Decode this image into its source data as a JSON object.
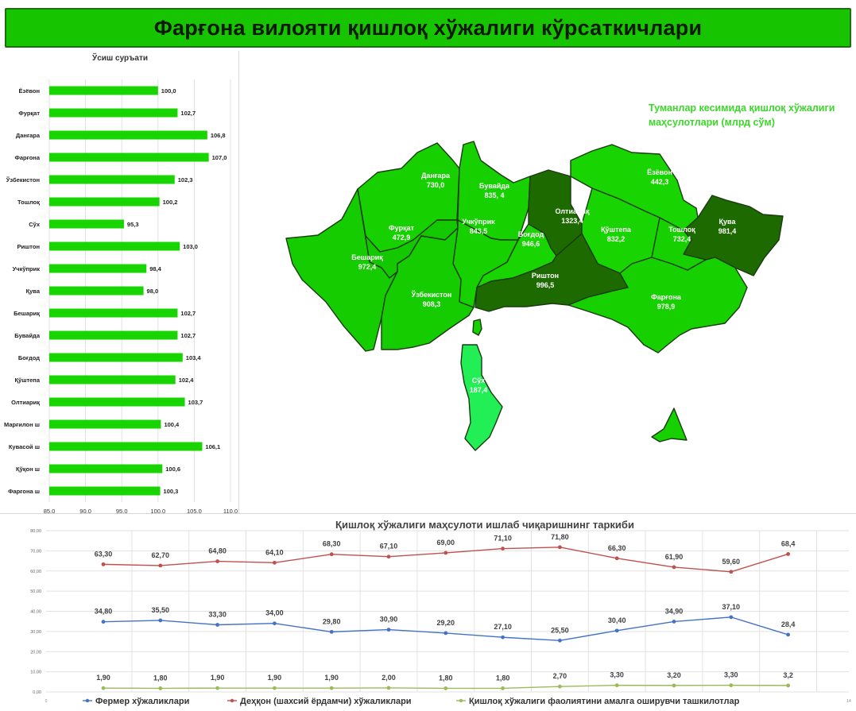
{
  "header": {
    "title": "Фарғона вилояти қишлоқ хўжалиги кўрсаткичлари"
  },
  "colors": {
    "header_bg": "#17c400",
    "bar": "#18d400",
    "map_light": "#16d000",
    "map_dark": "#1d6b00",
    "map_pale": "#22ee55",
    "map_label": "#3bd82a",
    "series_fermer": "#4472c4",
    "series_dehqon": "#c0504d",
    "series_korxona": "#9bbb59"
  },
  "map": {
    "legend_title_line1": "Туманлар кесимида қишлоқ хўжалиги",
    "legend_title_line2": "маҳсулотлари (млрд сўм)",
    "regions": [
      {
        "name": "Данғара",
        "value": "730,0"
      },
      {
        "name": "Бувайда",
        "value": "835, 4"
      },
      {
        "name": "Ёзёвон",
        "value": "442,3"
      },
      {
        "name": "Фурқат",
        "value": "472,9"
      },
      {
        "name": "Учкўприк",
        "value": "843,5"
      },
      {
        "name": "Олтиариқ",
        "value": "1323,4"
      },
      {
        "name": "Қува",
        "value": "981,4"
      },
      {
        "name": "Бешариқ",
        "value": "972,4"
      },
      {
        "name": "Боғдод",
        "value": "946,6"
      },
      {
        "name": "Қўштепа",
        "value": "832,2"
      },
      {
        "name": "Тошлоқ",
        "value": "732,4"
      },
      {
        "name": "Риштон",
        "value": "996,5"
      },
      {
        "name": "Ўзбекистон",
        "value": "908,3"
      },
      {
        "name": "Фарғона",
        "value": "978,9"
      },
      {
        "name": "Сўх",
        "value": "187,4"
      }
    ]
  },
  "chart_data": [
    {
      "type": "bar",
      "orientation": "horizontal",
      "title": "Ўсиш суръати",
      "categories": [
        "Ёзёвон",
        "Фурқат",
        "Данғара",
        "Фарғона",
        "Ўзбекистон",
        "Тошлоқ",
        "Сўх",
        "Риштон",
        "Учкўприк",
        "Қува",
        "Бешариқ",
        "Бувайда",
        "Боғдод",
        "Қўштепа",
        "Олтиариқ",
        "Марғилон ш",
        "Кувасой ш",
        "Қўқон ш",
        "Фарғона ш"
      ],
      "values": [
        100.0,
        102.7,
        106.8,
        107.0,
        102.3,
        100.2,
        95.3,
        103.0,
        98.4,
        98.0,
        102.7,
        102.7,
        103.4,
        102.4,
        103.7,
        100.4,
        106.1,
        100.6,
        100.3
      ],
      "value_labels": [
        "100,0",
        "102,7",
        "106,8",
        "107,0",
        "102,3",
        "100,2",
        "95,3",
        "103,0",
        "98,4",
        "98,0",
        "102,7",
        "102,7",
        "103,4",
        "102,4",
        "103,7",
        "100,4",
        "106,1",
        "100,6",
        "100,3"
      ],
      "xlim": [
        85,
        110
      ],
      "xticks": [
        "85,0",
        "90,0",
        "95,0",
        "100,0",
        "105,0",
        "110,0"
      ],
      "grid": true
    },
    {
      "type": "line",
      "title": "Қишлоқ хўжалиги маҳсулоти ишлаб чиқаришнинг таркиби",
      "ylim": [
        0,
        80
      ],
      "yticks": [
        "0,00",
        "10,00",
        "20,00",
        "30,00",
        "40,00",
        "50,00",
        "60,00",
        "70,00",
        "80,00"
      ],
      "xticks": [
        "0",
        "14"
      ],
      "grid": true,
      "legend_position": "bottom",
      "series": [
        {
          "name": "Фермер хўжаликлари",
          "color": "#4472c4",
          "values": [
            34.8,
            35.5,
            33.3,
            34.0,
            29.8,
            30.9,
            29.2,
            27.1,
            25.5,
            30.4,
            34.9,
            37.1,
            28.4
          ],
          "labels": [
            "34,80",
            "35,50",
            "33,30",
            "34,00",
            "29,80",
            "30,90",
            "29,20",
            "27,10",
            "25,50",
            "30,40",
            "34,90",
            "37,10",
            "28,4"
          ],
          "label_pos": "above"
        },
        {
          "name": "Деҳқон (шахсий ёрдамчи) хўжаликлари",
          "color": "#c0504d",
          "values": [
            63.3,
            62.7,
            64.8,
            64.1,
            68.3,
            67.1,
            69.0,
            71.1,
            71.8,
            66.3,
            61.9,
            59.6,
            68.4
          ],
          "labels": [
            "63,30",
            "62,70",
            "64,80",
            "64,10",
            "68,30",
            "67,10",
            "69,00",
            "71,10",
            "71,80",
            "66,30",
            "61,90",
            "59,60",
            "68,4"
          ],
          "label_pos": "above"
        },
        {
          "name": "Қишлоқ хўжалиги фаолиятини амалга оширувчи ташкилотлар",
          "color": "#9bbb59",
          "values": [
            1.9,
            1.8,
            1.9,
            1.9,
            1.9,
            2.0,
            1.8,
            1.8,
            2.7,
            3.3,
            3.2,
            3.3,
            3.2
          ],
          "labels": [
            "1,90",
            "1,80",
            "1,90",
            "1,90",
            "1,90",
            "2,00",
            "1,80",
            "1,80",
            "2,70",
            "3,30",
            "3,20",
            "3,30",
            "3,2"
          ],
          "label_pos": "above"
        }
      ]
    }
  ]
}
